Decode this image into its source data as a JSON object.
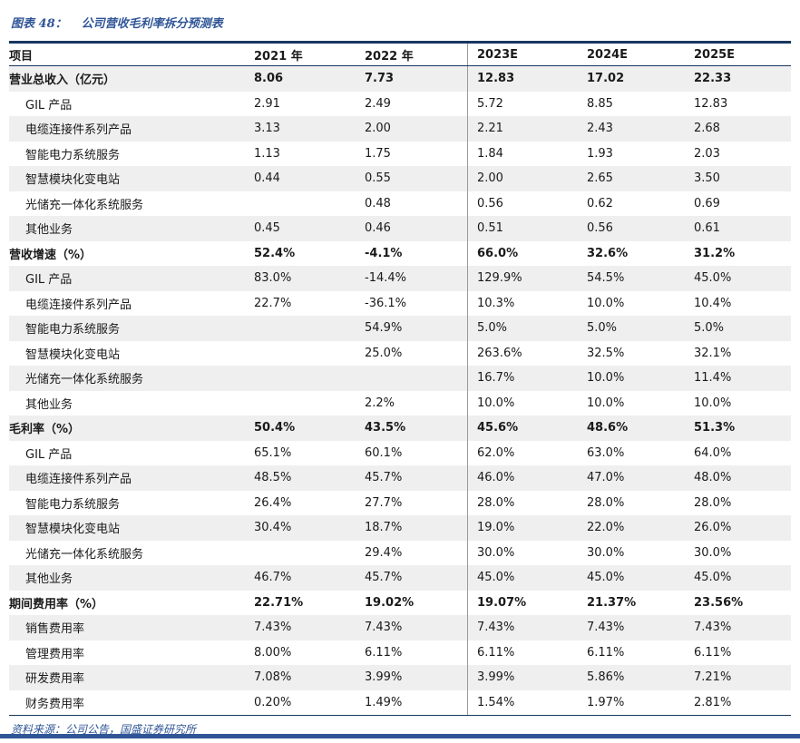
{
  "page": {
    "title_prefix": "图表 48：",
    "title_text": "公司营收毛利率拆分预测表",
    "source": "资料来源：公司公告，国盛证券研究所",
    "accent_color": "#2f5597",
    "border_color": "#17375e",
    "stripe_color": "#efefef"
  },
  "table": {
    "header": [
      "项目",
      "2021 年",
      "2022 年",
      "2023E",
      "2024E",
      "2025E"
    ],
    "rows": [
      {
        "label": "营业总收入（亿元）",
        "bold": true,
        "values": [
          "8.06",
          "7.73",
          "12.83",
          "17.02",
          "22.33"
        ]
      },
      {
        "label": "GIL 产品",
        "bold": false,
        "values": [
          "2.91",
          "2.49",
          "5.72",
          "8.85",
          "12.83"
        ]
      },
      {
        "label": "电缆连接件系列产品",
        "bold": false,
        "values": [
          "3.13",
          "2.00",
          "2.21",
          "2.43",
          "2.68"
        ]
      },
      {
        "label": "智能电力系统服务",
        "bold": false,
        "values": [
          "1.13",
          "1.75",
          "1.84",
          "1.93",
          "2.03"
        ]
      },
      {
        "label": "智慧模块化变电站",
        "bold": false,
        "values": [
          "0.44",
          "0.55",
          "2.00",
          "2.65",
          "3.50"
        ]
      },
      {
        "label": "光储充一体化系统服务",
        "bold": false,
        "values": [
          "",
          "0.48",
          "0.56",
          "0.62",
          "0.69"
        ]
      },
      {
        "label": "其他业务",
        "bold": false,
        "values": [
          "0.45",
          "0.46",
          "0.51",
          "0.56",
          "0.61"
        ]
      },
      {
        "label": "营收增速（%）",
        "bold": true,
        "values": [
          "52.4%",
          "-4.1%",
          "66.0%",
          "32.6%",
          "31.2%"
        ]
      },
      {
        "label": "GIL 产品",
        "bold": false,
        "values": [
          "83.0%",
          "-14.4%",
          "129.9%",
          "54.5%",
          "45.0%"
        ]
      },
      {
        "label": "电缆连接件系列产品",
        "bold": false,
        "values": [
          "22.7%",
          "-36.1%",
          "10.3%",
          "10.0%",
          "10.4%"
        ]
      },
      {
        "label": "智能电力系统服务",
        "bold": false,
        "values": [
          "",
          "54.9%",
          "5.0%",
          "5.0%",
          "5.0%"
        ]
      },
      {
        "label": "智慧模块化变电站",
        "bold": false,
        "values": [
          "",
          "25.0%",
          "263.6%",
          "32.5%",
          "32.1%"
        ]
      },
      {
        "label": "光储充一体化系统服务",
        "bold": false,
        "values": [
          "",
          "",
          "16.7%",
          "10.0%",
          "11.4%"
        ]
      },
      {
        "label": "其他业务",
        "bold": false,
        "values": [
          "",
          "2.2%",
          "10.0%",
          "10.0%",
          "10.0%"
        ]
      },
      {
        "label": "毛利率（%）",
        "bold": true,
        "values": [
          "50.4%",
          "43.5%",
          "45.6%",
          "48.6%",
          "51.3%"
        ]
      },
      {
        "label": "GIL 产品",
        "bold": false,
        "values": [
          "65.1%",
          "60.1%",
          "62.0%",
          "63.0%",
          "64.0%"
        ]
      },
      {
        "label": "电缆连接件系列产品",
        "bold": false,
        "values": [
          "48.5%",
          "45.7%",
          "46.0%",
          "47.0%",
          "48.0%"
        ]
      },
      {
        "label": "智能电力系统服务",
        "bold": false,
        "values": [
          "26.4%",
          "27.7%",
          "28.0%",
          "28.0%",
          "28.0%"
        ]
      },
      {
        "label": "智慧模块化变电站",
        "bold": false,
        "values": [
          "30.4%",
          "18.7%",
          "19.0%",
          "22.0%",
          "26.0%"
        ]
      },
      {
        "label": "光储充一体化系统服务",
        "bold": false,
        "values": [
          "",
          "29.4%",
          "30.0%",
          "30.0%",
          "30.0%"
        ]
      },
      {
        "label": "其他业务",
        "bold": false,
        "values": [
          "46.7%",
          "45.7%",
          "45.0%",
          "45.0%",
          "45.0%"
        ]
      },
      {
        "label": "期间费用率（%）",
        "bold": true,
        "values": [
          "22.71%",
          "19.02%",
          "19.07%",
          "21.37%",
          "23.56%"
        ]
      },
      {
        "label": "销售费用率",
        "bold": false,
        "values": [
          "7.43%",
          "7.43%",
          "7.43%",
          "7.43%",
          "7.43%"
        ]
      },
      {
        "label": "管理费用率",
        "bold": false,
        "values": [
          "8.00%",
          "6.11%",
          "6.11%",
          "6.11%",
          "6.11%"
        ]
      },
      {
        "label": "研发费用率",
        "bold": false,
        "values": [
          "7.08%",
          "3.99%",
          "3.99%",
          "5.86%",
          "7.21%"
        ]
      },
      {
        "label": "财务费用率",
        "bold": false,
        "values": [
          "0.20%",
          "1.49%",
          "1.54%",
          "1.97%",
          "2.81%"
        ]
      }
    ]
  }
}
